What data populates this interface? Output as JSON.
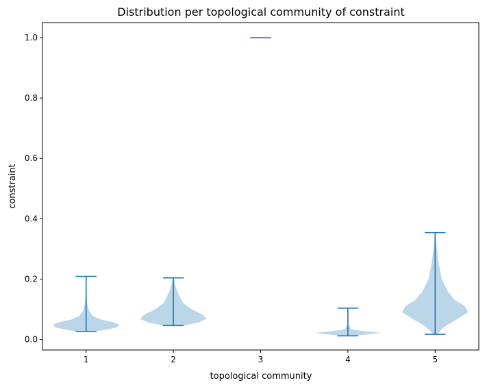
{
  "chart_data": {
    "type": "violin",
    "title": "Distribution per topological community of constraint",
    "xlabel": "topological community",
    "ylabel": "constraint",
    "ylim": [
      -0.035,
      1.05
    ],
    "yticks": [
      "0.0",
      "0.2",
      "0.4",
      "0.6",
      "0.8",
      "1.0"
    ],
    "categories": [
      "1",
      "2",
      "3",
      "4",
      "5"
    ],
    "colors": {
      "body": "#1f77b4",
      "line": "#1f77b4"
    },
    "series": [
      {
        "category": "1",
        "min": 0.026,
        "max": 0.209,
        "profile": [
          [
            0.026,
            0.2
          ],
          [
            0.032,
            0.6
          ],
          [
            0.04,
            0.92
          ],
          [
            0.048,
            1.0
          ],
          [
            0.056,
            0.85
          ],
          [
            0.066,
            0.45
          ],
          [
            0.078,
            0.2
          ],
          [
            0.095,
            0.09
          ],
          [
            0.12,
            0.03
          ],
          [
            0.16,
            0.012
          ],
          [
            0.209,
            0.005
          ]
        ]
      },
      {
        "category": "2",
        "min": 0.046,
        "max": 0.204,
        "profile": [
          [
            0.046,
            0.3
          ],
          [
            0.056,
            0.75
          ],
          [
            0.068,
            1.0
          ],
          [
            0.082,
            0.88
          ],
          [
            0.1,
            0.55
          ],
          [
            0.12,
            0.3
          ],
          [
            0.14,
            0.2
          ],
          [
            0.16,
            0.12
          ],
          [
            0.18,
            0.06
          ],
          [
            0.204,
            0.01
          ]
        ]
      },
      {
        "category": "3",
        "min": 1.0,
        "max": 1.0,
        "profile": []
      },
      {
        "category": "4",
        "min": 0.012,
        "max": 0.104,
        "profile": [
          [
            0.012,
            0.2
          ],
          [
            0.017,
            0.6
          ],
          [
            0.022,
            1.0
          ],
          [
            0.027,
            0.55
          ],
          [
            0.033,
            0.1
          ],
          [
            0.05,
            0.015
          ],
          [
            0.104,
            0.003
          ]
        ]
      },
      {
        "category": "5",
        "min": 0.017,
        "max": 0.354,
        "profile": [
          [
            0.017,
            0.05
          ],
          [
            0.04,
            0.25
          ],
          [
            0.07,
            0.7
          ],
          [
            0.09,
            1.0
          ],
          [
            0.11,
            0.9
          ],
          [
            0.13,
            0.6
          ],
          [
            0.16,
            0.38
          ],
          [
            0.2,
            0.2
          ],
          [
            0.25,
            0.11
          ],
          [
            0.3,
            0.05
          ],
          [
            0.354,
            0.004
          ]
        ]
      }
    ]
  }
}
